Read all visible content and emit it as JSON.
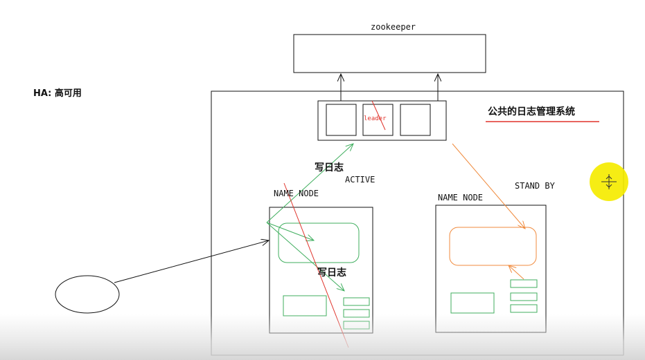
{
  "diagram": {
    "zookeeper_label": "zookeeper",
    "ha_label": "HA: 高可用",
    "shared_log_label": "公共的日志管理系统",
    "leader_label": "leader",
    "write_log_top": "写日志",
    "write_log_inner": "写日志",
    "active_label": "ACTIVE",
    "standby_label": "STAND BY",
    "namenode_left": "NAME NODE",
    "namenode_right": "NAME NODE"
  },
  "colors": {
    "stroke": "#111111",
    "green": "#3fae5e",
    "orange": "#f08a3c",
    "red": "#e0322a",
    "cursor_highlight": "#f5eb00"
  }
}
